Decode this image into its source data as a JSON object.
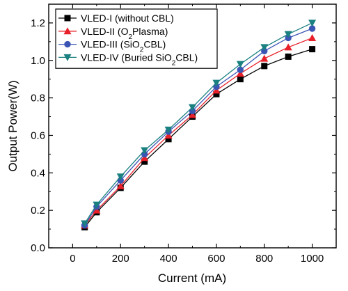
{
  "chart_data": {
    "type": "line",
    "xlabel": "Current (mA)",
    "ylabel": "Output Power(W)",
    "xlim": [
      -100,
      1100
    ],
    "ylim": [
      0.0,
      1.3
    ],
    "x_ticks": [
      0,
      200,
      400,
      600,
      800,
      1000
    ],
    "y_ticks": [
      0.0,
      0.2,
      0.4,
      0.6,
      0.8,
      1.0,
      1.2
    ],
    "x_tick_labels": [
      "0",
      "200",
      "400",
      "600",
      "800",
      "1000"
    ],
    "y_tick_labels": [
      "0.0",
      "0.2",
      "0.4",
      "0.6",
      "0.8",
      "1.0",
      "1.2"
    ],
    "legend_position": "top-left",
    "grid": false,
    "x": [
      50,
      100,
      200,
      300,
      400,
      500,
      600,
      700,
      800,
      900,
      1000
    ],
    "series": [
      {
        "name": "VLED-I (without CBL)",
        "legend_parts": [
          {
            "t": "VLED-I (without CBL)"
          }
        ],
        "marker": "square",
        "color": "#000000",
        "values": [
          0.11,
          0.19,
          0.32,
          0.46,
          0.58,
          0.7,
          0.82,
          0.9,
          0.97,
          1.02,
          1.06
        ]
      },
      {
        "name": "VLED-II (O2Plasma)",
        "legend_parts": [
          {
            "t": "VLED-II (O"
          },
          {
            "t": "2",
            "sub": true
          },
          {
            "t": "Plasma)"
          }
        ],
        "marker": "triangle-up",
        "color": "#e8202a",
        "values": [
          0.12,
          0.2,
          0.33,
          0.48,
          0.6,
          0.71,
          0.84,
          0.93,
          1.01,
          1.07,
          1.12
        ]
      },
      {
        "name": "VLED-III (SiO2CBL)",
        "legend_parts": [
          {
            "t": "VLED-III (SiO"
          },
          {
            "t": "2",
            "sub": true
          },
          {
            "t": "CBL)"
          }
        ],
        "marker": "circle",
        "color": "#3b55b5",
        "values": [
          0.12,
          0.22,
          0.36,
          0.5,
          0.62,
          0.73,
          0.86,
          0.95,
          1.05,
          1.12,
          1.17
        ]
      },
      {
        "name": "VLED-IV (Buried SiO2CBL)",
        "legend_parts": [
          {
            "t": "VLED-IV (Buried SiO"
          },
          {
            "t": "2",
            "sub": true
          },
          {
            "t": "CBL)"
          }
        ],
        "marker": "triangle-down",
        "color": "#1a8080",
        "values": [
          0.13,
          0.23,
          0.38,
          0.52,
          0.63,
          0.75,
          0.88,
          0.98,
          1.07,
          1.14,
          1.2
        ]
      }
    ]
  }
}
